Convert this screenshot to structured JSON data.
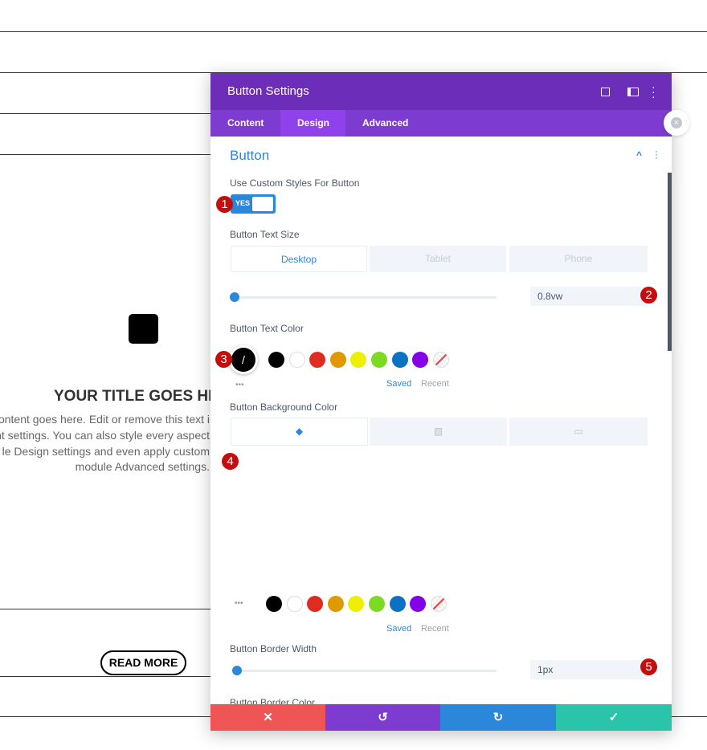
{
  "background": {
    "title": "YOUR TITLE GOES HE",
    "body_lines": [
      "ontent goes here. Edit or remove this text i",
      "nt settings. You can also style every aspect",
      "le Design settings and even apply custom",
      "module Advanced settings."
    ],
    "button": "READ MORE"
  },
  "panel": {
    "title": "Button Settings",
    "tabs": [
      "Content",
      "Design",
      "Advanced"
    ],
    "section": "Button",
    "custom_styles": {
      "label": "Use Custom Styles For Button",
      "toggle": "YES"
    },
    "text_size": {
      "label": "Button Text Size",
      "devices": [
        "Desktop",
        "Tablet",
        "Phone"
      ],
      "value": "0.8vw"
    },
    "text_color": {
      "label": "Button Text Color",
      "saved": "Saved",
      "recent": "Recent"
    },
    "bg_color": {
      "label": "Button Background Color",
      "saved": "Saved",
      "recent": "Recent"
    },
    "border_width": {
      "label": "Button Border Width",
      "value": "1px"
    },
    "border_color": {
      "label": "Button Border Color"
    },
    "swatches": [
      "#000000",
      "#ffffff",
      "#e02b20",
      "#e09900",
      "#edf000",
      "#7cda24",
      "#0c71c3",
      "#8300e9"
    ]
  },
  "badges": [
    "1",
    "2",
    "3",
    "4",
    "5"
  ]
}
